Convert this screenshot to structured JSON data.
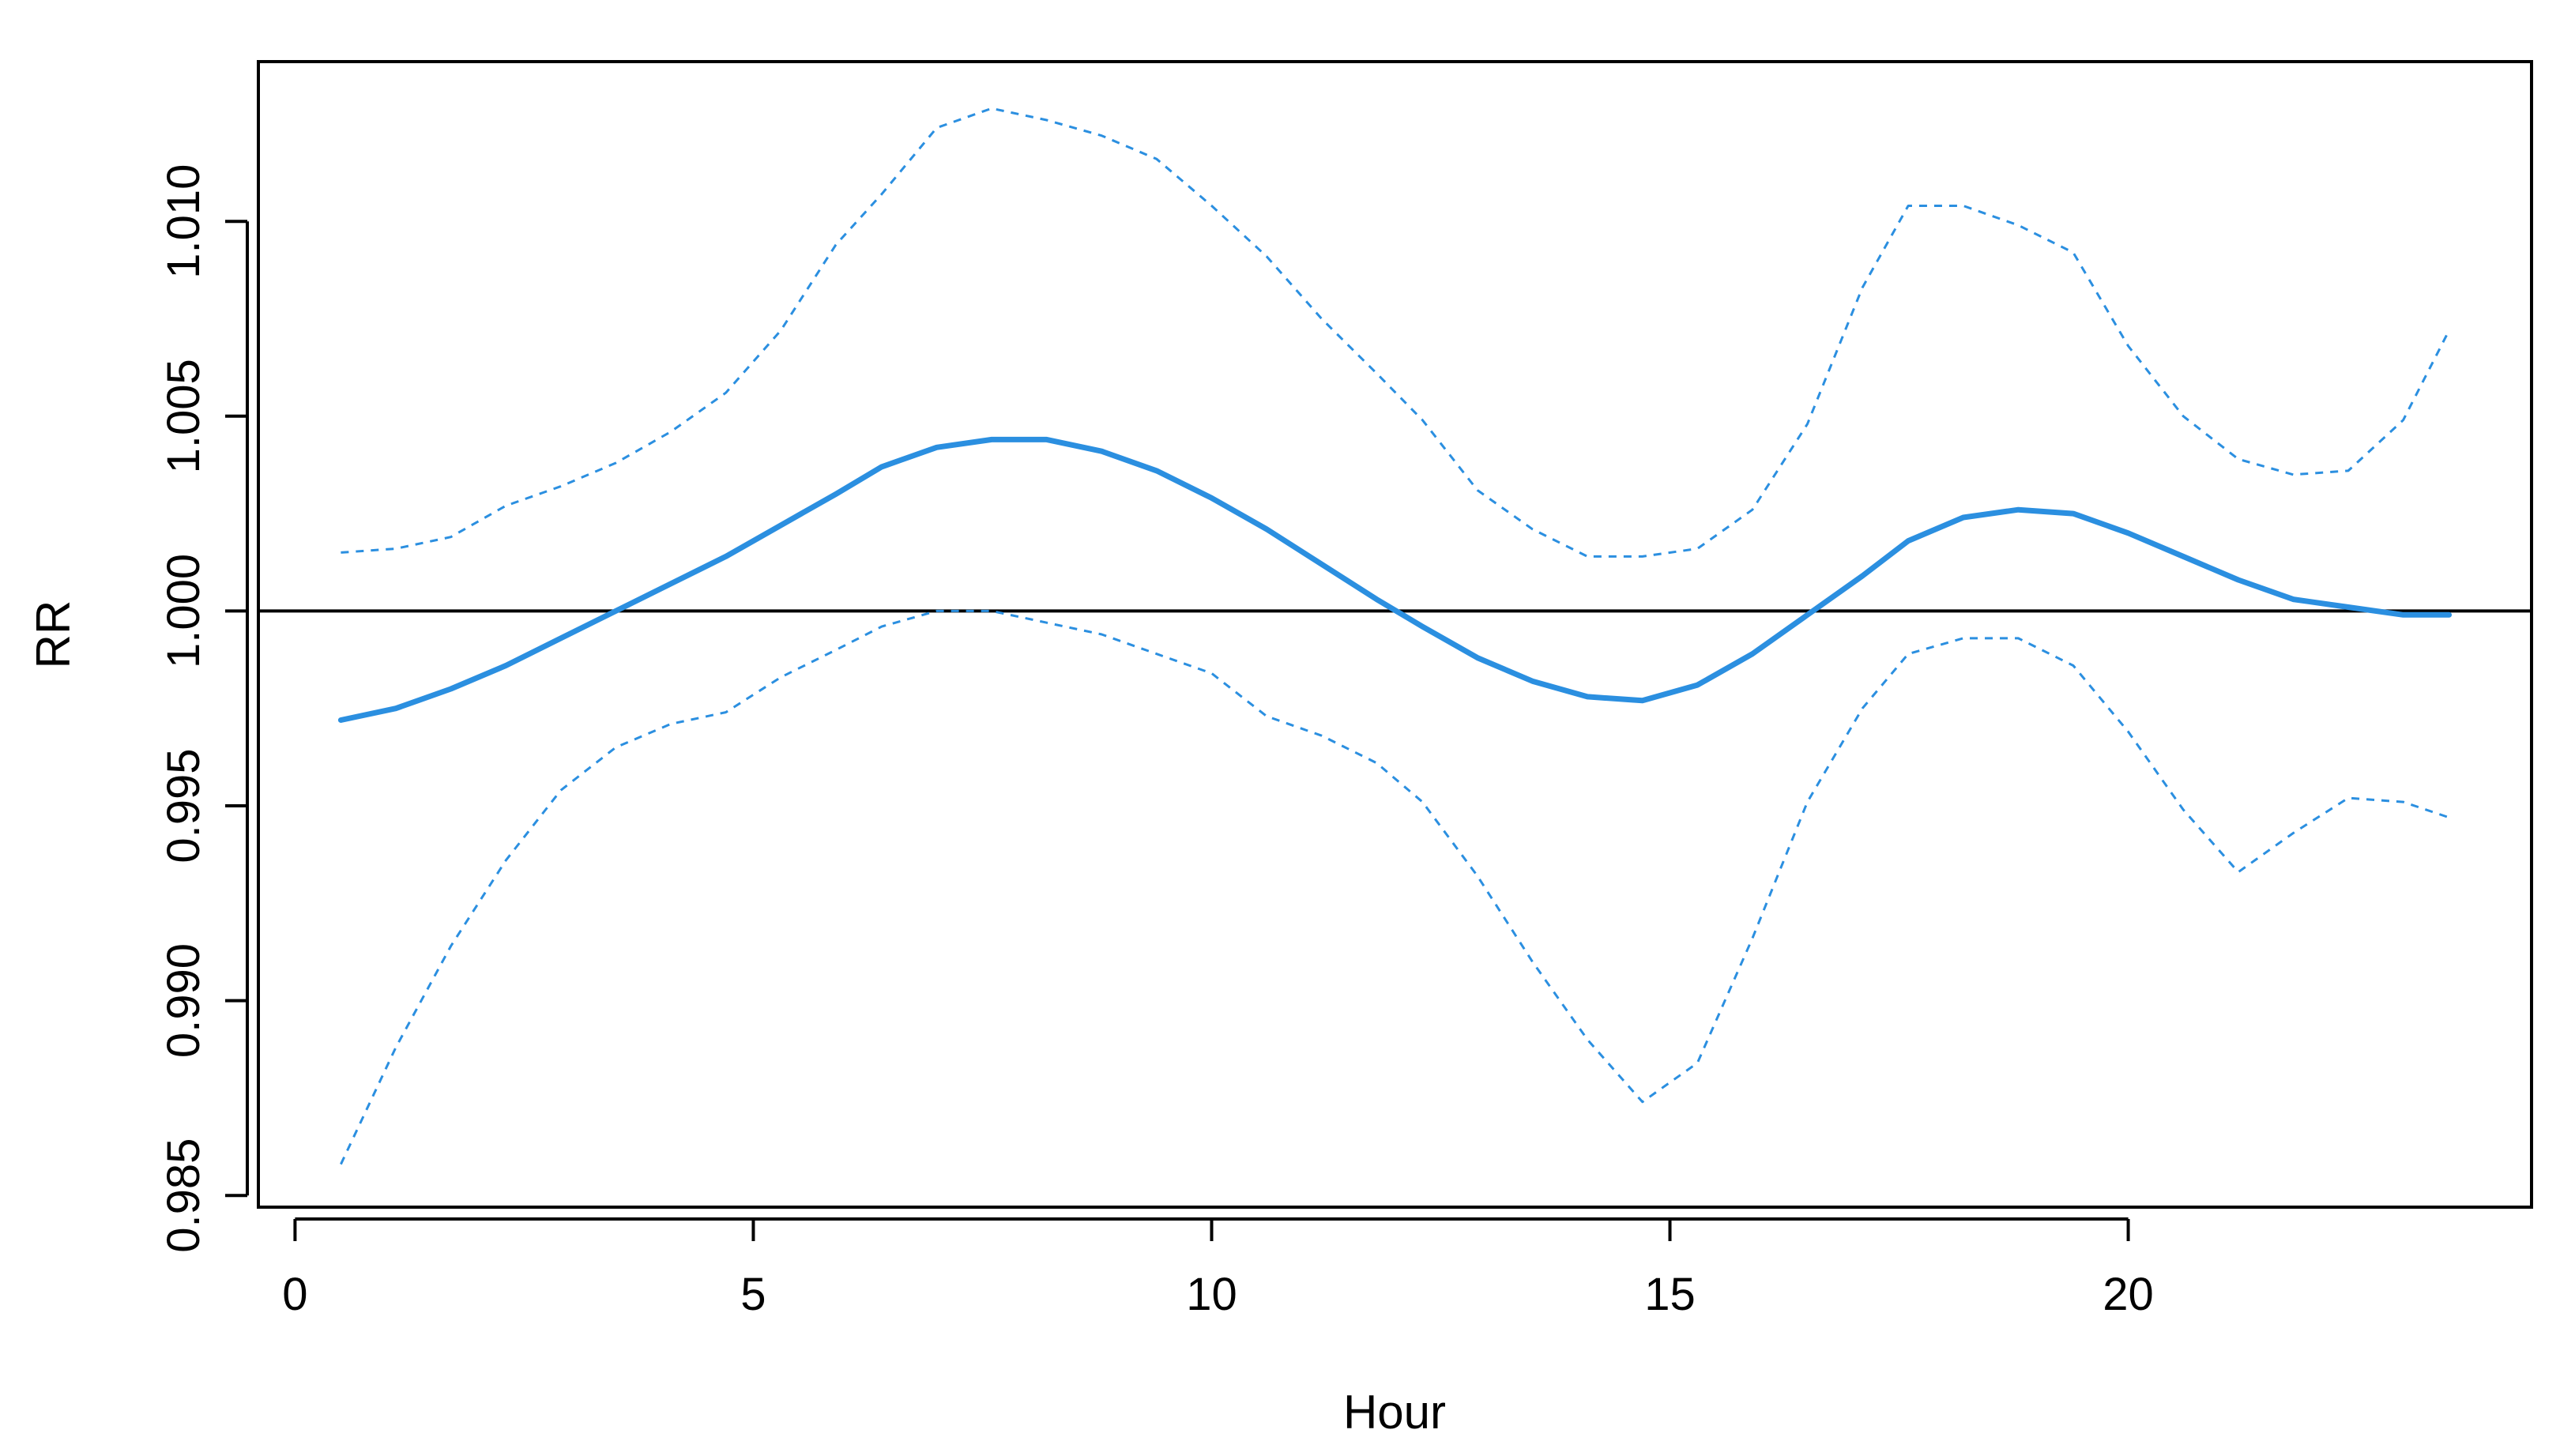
{
  "chart_data": {
    "type": "line",
    "title": "",
    "xlabel": "Hour",
    "ylabel": "RR",
    "xlim": [
      -0.4,
      24.4
    ],
    "ylim": [
      0.9847,
      1.0141
    ],
    "x_ticks": [
      0,
      5,
      10,
      15,
      20
    ],
    "x_tick_labels": [
      "0",
      "5",
      "10",
      "15",
      "20"
    ],
    "y_ticks": [
      0.985,
      0.99,
      0.995,
      1.0,
      1.005,
      1.01
    ],
    "y_tick_labels": [
      "0.985",
      "0.990",
      "0.995",
      "1.000",
      "1.005",
      "1.010"
    ],
    "reference_line": 1.0,
    "grid": false,
    "legend": "none",
    "colors": {
      "series": "#2b8fe0",
      "reference": "#000000",
      "axes": "#000000"
    },
    "x": [
      0.5,
      1.1,
      1.7,
      2.3,
      2.9,
      3.5,
      4.1,
      4.7,
      5.3,
      5.9,
      6.4,
      7.0,
      7.6,
      8.2,
      8.8,
      9.4,
      10.0,
      10.6,
      11.2,
      11.8,
      12.3,
      12.9,
      13.5,
      14.1,
      14.7,
      15.3,
      15.9,
      16.5,
      17.1,
      17.6,
      18.2,
      18.8,
      19.4,
      20.0,
      20.6,
      21.2,
      21.8,
      22.4,
      23.0,
      23.5
    ],
    "series": [
      {
        "role": "estimate",
        "style": "solid",
        "values": [
          0.9972,
          0.9975,
          0.998,
          0.9986,
          0.9993,
          1.0,
          1.0007,
          1.0014,
          1.0022,
          1.003,
          1.0037,
          1.0042,
          1.0044,
          1.0044,
          1.0041,
          1.0036,
          1.0029,
          1.0021,
          1.0012,
          1.0003,
          0.9996,
          0.9988,
          0.9982,
          0.9978,
          0.9977,
          0.9981,
          0.9989,
          0.9999,
          1.0009,
          1.0018,
          1.0024,
          1.0026,
          1.0025,
          1.002,
          1.0014,
          1.0008,
          1.0003,
          1.0001,
          0.9999,
          0.9999
        ]
      },
      {
        "role": "upper",
        "style": "dotted",
        "values": [
          1.0015,
          1.0016,
          1.0019,
          1.0027,
          1.0032,
          1.0038,
          1.0046,
          1.0056,
          1.0072,
          1.0094,
          1.0107,
          1.0124,
          1.0129,
          1.0126,
          1.0122,
          1.0116,
          1.0104,
          1.0091,
          1.0075,
          1.0061,
          1.0049,
          1.0031,
          1.0021,
          1.0014,
          1.0014,
          1.0016,
          1.0026,
          1.0048,
          1.0083,
          1.0104,
          1.0104,
          1.0099,
          1.0092,
          1.0068,
          1.005,
          1.0039,
          1.0035,
          1.0036,
          1.0049,
          1.0072
        ]
      },
      {
        "role": "lower",
        "style": "dotted",
        "values": [
          0.9858,
          0.9888,
          0.9914,
          0.9936,
          0.9954,
          0.9965,
          0.9971,
          0.9974,
          0.9983,
          0.999,
          0.9996,
          1.0,
          1.0,
          0.9997,
          0.9994,
          0.9989,
          0.9984,
          0.9973,
          0.9968,
          0.9961,
          0.9951,
          0.9932,
          0.991,
          0.989,
          0.9874,
          0.9884,
          0.9916,
          0.9951,
          0.9975,
          0.9989,
          0.9993,
          0.9993,
          0.9986,
          0.9969,
          0.9949,
          0.9933,
          0.9943,
          0.9952,
          0.9951,
          0.9947
        ]
      }
    ]
  }
}
